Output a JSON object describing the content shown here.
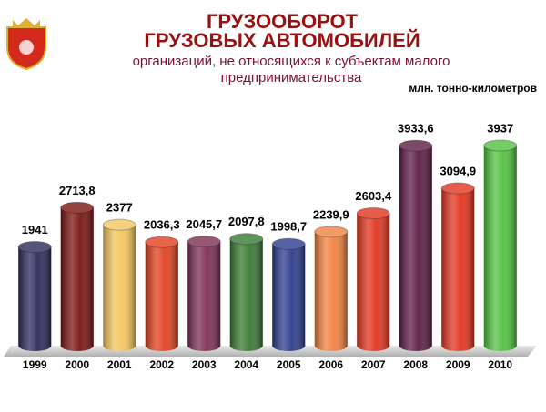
{
  "chart_data": {
    "type": "bar",
    "title": [
      "ГРУЗООБОРОТ",
      "ГРУЗОВЫХ АВТОМОБИЛЕЙ"
    ],
    "subtitle": [
      "организаций, не относящихся к субъектам малого",
      "предпринимательства"
    ],
    "unit": "млн. тонно-километров",
    "categories": [
      "1999",
      "2000",
      "2001",
      "2002",
      "2003",
      "2004",
      "2005",
      "2006",
      "2007",
      "2008",
      "2009",
      "2010"
    ],
    "values": [
      1941,
      2713.8,
      2377,
      2036.3,
      2045.7,
      2097.8,
      1998.7,
      2239.9,
      2603.4,
      3933.6,
      3094.9,
      3937
    ],
    "value_labels": [
      "1941",
      "2713,8",
      "2377",
      "2036,3",
      "2045,7",
      "2097,8",
      "1998,7",
      "2239,9",
      "2603,4",
      "3933,6",
      "3094,9",
      "3937"
    ],
    "colors": [
      "#2b2b5c",
      "#7a1410",
      "#f2c65e",
      "#e2401f",
      "#7c2f52",
      "#3a7a32",
      "#2c3c8c",
      "#f0823e",
      "#e2341e",
      "#5c1c44",
      "#e2341e",
      "#52c240"
    ]
  }
}
